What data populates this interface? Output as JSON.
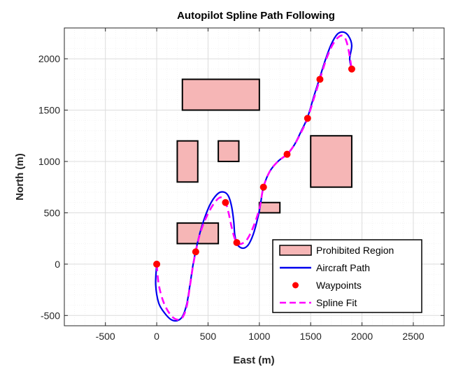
{
  "chart_data": {
    "type": "line",
    "title": "Autopilot Spline Path Following",
    "xlabel": "East (m)",
    "ylabel": "North (m)",
    "xlim": [
      -900,
      2800
    ],
    "ylim": [
      -600,
      2300
    ],
    "grid": true,
    "minor_grid": true,
    "legend_position": "bottom-right",
    "xticks": [
      -500,
      0,
      500,
      1000,
      1500,
      2000,
      2500
    ],
    "yticks": [
      -500,
      0,
      500,
      1000,
      1500,
      2000
    ],
    "series": [
      {
        "name": "Prohibited Region",
        "kind": "rectangles",
        "color": "#f6b6b6",
        "edge_color": "#000000",
        "rects": [
          {
            "x": [
              250,
              1000
            ],
            "y": [
              1500,
              1800
            ]
          },
          {
            "x": [
              200,
              400
            ],
            "y": [
              800,
              1200
            ]
          },
          {
            "x": [
              600,
              800
            ],
            "y": [
              1000,
              1200
            ]
          },
          {
            "x": [
              1500,
              1900
            ],
            "y": [
              750,
              1250
            ]
          },
          {
            "x": [
              1000,
              1200
            ],
            "y": [
              500,
              600
            ]
          },
          {
            "x": [
              200,
              600
            ],
            "y": [
              200,
              400
            ]
          }
        ]
      },
      {
        "name": "Aircraft Path",
        "kind": "line",
        "color": "#0000ee",
        "dash": "solid",
        "points": [
          [
            0,
            0
          ],
          [
            -10,
            -200
          ],
          [
            20,
            -380
          ],
          [
            80,
            -480
          ],
          [
            140,
            -540
          ],
          [
            200,
            -550
          ],
          [
            250,
            -510
          ],
          [
            290,
            -400
          ],
          [
            320,
            -230
          ],
          [
            350,
            -30
          ],
          [
            380,
            130
          ],
          [
            420,
            300
          ],
          [
            470,
            460
          ],
          [
            530,
            600
          ],
          [
            600,
            690
          ],
          [
            660,
            700
          ],
          [
            700,
            660
          ],
          [
            730,
            560
          ],
          [
            750,
            420
          ],
          [
            760,
            290
          ],
          [
            780,
            200
          ],
          [
            820,
            160
          ],
          [
            860,
            160
          ],
          [
            900,
            200
          ],
          [
            950,
            320
          ],
          [
            1000,
            520
          ],
          [
            1040,
            750
          ],
          [
            1100,
            900
          ],
          [
            1180,
            1000
          ],
          [
            1270,
            1070
          ],
          [
            1340,
            1160
          ],
          [
            1410,
            1300
          ],
          [
            1470,
            1430
          ],
          [
            1530,
            1630
          ],
          [
            1590,
            1820
          ],
          [
            1640,
            1980
          ],
          [
            1700,
            2140
          ],
          [
            1760,
            2240
          ],
          [
            1820,
            2260
          ],
          [
            1870,
            2220
          ],
          [
            1900,
            2130
          ],
          [
            1880,
            2000
          ],
          [
            1900,
            1900
          ]
        ]
      },
      {
        "name": "Waypoints",
        "kind": "markers",
        "color": "#ff0000",
        "points": [
          [
            0,
            0
          ],
          [
            380,
            120
          ],
          [
            670,
            600
          ],
          [
            780,
            210
          ],
          [
            1040,
            750
          ],
          [
            1270,
            1070
          ],
          [
            1470,
            1420
          ],
          [
            1590,
            1800
          ],
          [
            1900,
            1900
          ]
        ]
      },
      {
        "name": "Spline Fit",
        "kind": "line",
        "color": "#ff00ff",
        "dash": "dashed",
        "points": [
          [
            0,
            0
          ],
          [
            20,
            -200
          ],
          [
            70,
            -380
          ],
          [
            140,
            -500
          ],
          [
            200,
            -540
          ],
          [
            250,
            -520
          ],
          [
            290,
            -420
          ],
          [
            320,
            -240
          ],
          [
            350,
            -40
          ],
          [
            380,
            120
          ],
          [
            420,
            290
          ],
          [
            480,
            450
          ],
          [
            550,
            580
          ],
          [
            620,
            650
          ],
          [
            670,
            600
          ],
          [
            700,
            500
          ],
          [
            730,
            360
          ],
          [
            760,
            250
          ],
          [
            790,
            200
          ],
          [
            830,
            200
          ],
          [
            880,
            240
          ],
          [
            940,
            360
          ],
          [
            1000,
            540
          ],
          [
            1040,
            750
          ],
          [
            1100,
            900
          ],
          [
            1180,
            1000
          ],
          [
            1270,
            1070
          ],
          [
            1340,
            1160
          ],
          [
            1410,
            1290
          ],
          [
            1470,
            1420
          ],
          [
            1530,
            1610
          ],
          [
            1590,
            1800
          ],
          [
            1650,
            1990
          ],
          [
            1710,
            2130
          ],
          [
            1770,
            2210
          ],
          [
            1820,
            2220
          ],
          [
            1860,
            2130
          ],
          [
            1900,
            1900
          ]
        ]
      }
    ]
  }
}
